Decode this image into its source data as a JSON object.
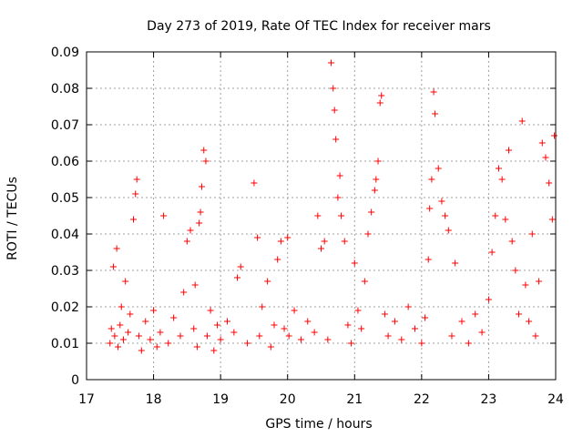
{
  "colors": {
    "series": "#ff0000",
    "grid": "#a0a0a0",
    "axis": "#000000",
    "background": "#ffffff"
  },
  "chart_data": {
    "type": "scatter",
    "title": "Day 273 of 2019, Rate Of TEC Index for receiver mars",
    "xlabel": "GPS time / hours",
    "ylabel": "ROTI / TECUs",
    "xlim": [
      17,
      24
    ],
    "ylim": [
      0,
      0.09
    ],
    "x_ticks": [
      17,
      18,
      19,
      20,
      21,
      22,
      23,
      24
    ],
    "x_tick_labels": [
      "17",
      "18",
      "19",
      "20",
      "21",
      "22",
      "23",
      "24"
    ],
    "y_ticks": [
      0,
      0.01,
      0.02,
      0.03,
      0.04,
      0.05,
      0.06,
      0.07,
      0.08,
      0.09
    ],
    "y_tick_labels": [
      "0",
      "0.01",
      "0.02",
      "0.03",
      "0.04",
      "0.05",
      "0.06",
      "0.07",
      "0.08",
      "0.09"
    ],
    "grid": true,
    "marker": "plus",
    "series": [
      {
        "name": "ROTI",
        "x": [
          17.35,
          17.37,
          17.4,
          17.42,
          17.45,
          17.47,
          17.5,
          17.52,
          17.55,
          17.58,
          17.62,
          17.65,
          17.7,
          17.73,
          17.75,
          17.78,
          17.82,
          17.88,
          17.95,
          18.0,
          18.05,
          18.1,
          18.15,
          18.22,
          18.3,
          18.4,
          18.45,
          18.5,
          18.55,
          18.6,
          18.62,
          18.65,
          18.68,
          18.7,
          18.72,
          18.75,
          18.78,
          18.8,
          18.85,
          18.9,
          18.95,
          19.0,
          19.1,
          19.2,
          19.25,
          19.3,
          19.4,
          19.5,
          19.55,
          19.58,
          19.62,
          19.7,
          19.75,
          19.8,
          19.85,
          19.9,
          19.95,
          20.0,
          20.02,
          20.1,
          20.2,
          20.3,
          20.4,
          20.45,
          20.5,
          20.55,
          20.6,
          20.65,
          20.68,
          20.7,
          20.72,
          20.75,
          20.78,
          20.8,
          20.85,
          20.9,
          20.95,
          21.0,
          21.05,
          21.1,
          21.15,
          21.2,
          21.25,
          21.3,
          21.32,
          21.35,
          21.38,
          21.4,
          21.45,
          21.5,
          21.6,
          21.7,
          21.8,
          21.9,
          22.0,
          22.05,
          22.1,
          22.12,
          22.15,
          22.18,
          22.2,
          22.25,
          22.3,
          22.35,
          22.4,
          22.45,
          22.5,
          22.6,
          22.7,
          22.8,
          22.9,
          23.0,
          23.05,
          23.1,
          23.15,
          23.2,
          23.25,
          23.3,
          23.35,
          23.4,
          23.45,
          23.5,
          23.55,
          23.6,
          23.65,
          23.7,
          23.75,
          23.8,
          23.85,
          23.9,
          23.95,
          23.98
        ],
        "y": [
          0.01,
          0.014,
          0.031,
          0.012,
          0.036,
          0.009,
          0.015,
          0.02,
          0.011,
          0.027,
          0.013,
          0.018,
          0.044,
          0.051,
          0.055,
          0.012,
          0.008,
          0.016,
          0.011,
          0.019,
          0.009,
          0.013,
          0.045,
          0.01,
          0.017,
          0.012,
          0.024,
          0.038,
          0.041,
          0.014,
          0.026,
          0.009,
          0.043,
          0.046,
          0.053,
          0.063,
          0.06,
          0.012,
          0.019,
          0.008,
          0.015,
          0.011,
          0.016,
          0.013,
          0.028,
          0.031,
          0.01,
          0.054,
          0.039,
          0.012,
          0.02,
          0.027,
          0.009,
          0.015,
          0.033,
          0.038,
          0.014,
          0.039,
          0.012,
          0.019,
          0.011,
          0.016,
          0.013,
          0.045,
          0.036,
          0.038,
          0.011,
          0.087,
          0.08,
          0.074,
          0.066,
          0.05,
          0.056,
          0.045,
          0.038,
          0.015,
          0.01,
          0.032,
          0.019,
          0.014,
          0.027,
          0.04,
          0.046,
          0.052,
          0.055,
          0.06,
          0.076,
          0.078,
          0.018,
          0.012,
          0.016,
          0.011,
          0.02,
          0.014,
          0.01,
          0.017,
          0.033,
          0.047,
          0.055,
          0.079,
          0.073,
          0.058,
          0.049,
          0.045,
          0.041,
          0.012,
          0.032,
          0.016,
          0.01,
          0.018,
          0.013,
          0.022,
          0.035,
          0.045,
          0.058,
          0.055,
          0.044,
          0.063,
          0.038,
          0.03,
          0.018,
          0.071,
          0.026,
          0.016,
          0.04,
          0.012,
          0.027,
          0.065,
          0.061,
          0.054,
          0.044,
          0.067
        ]
      }
    ]
  }
}
